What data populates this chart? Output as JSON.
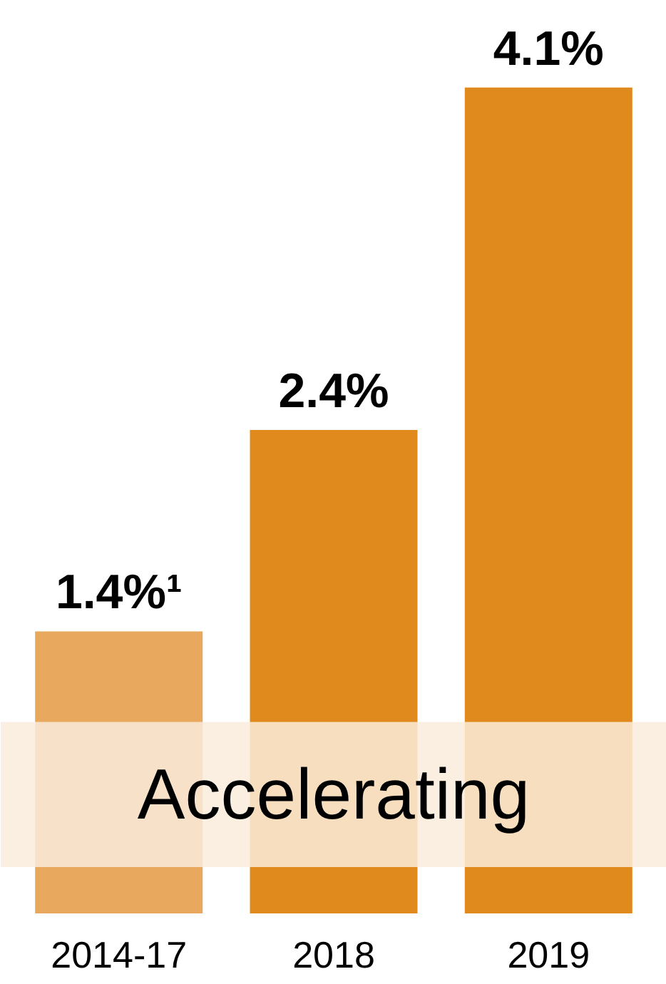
{
  "chart_data": {
    "type": "bar",
    "categories": [
      "2014-17",
      "2018",
      "2019"
    ],
    "values": [
      1.4,
      2.4,
      4.1
    ],
    "colors": [
      "#e8a95e",
      "#e08a1e",
      "#e08a1e"
    ],
    "value_labels": [
      "1.4%¹",
      "2.4%",
      "4.1%"
    ],
    "tick_labels": "x",
    "bands": [
      {
        "axis": "y",
        "from": 0.23,
        "to": 0.95,
        "label": "Accelerating",
        "color": "#f9ecdc"
      }
    ],
    "grid": false
  }
}
